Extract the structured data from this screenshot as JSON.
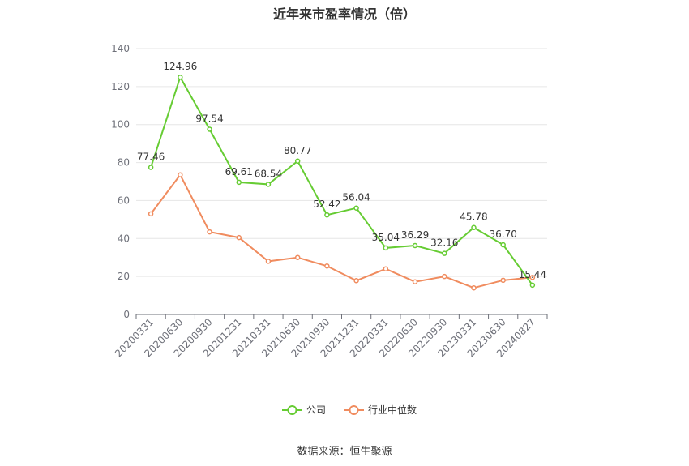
{
  "title": "近年来市盈率情况（倍）",
  "source": "数据来源：恒生聚源",
  "colors": {
    "company": "#66cc33",
    "median": "#f08c5f",
    "grid": "#e6e6e6",
    "axis": "#6e7079"
  },
  "chart_data": {
    "type": "line",
    "title": "近年来市盈率情况（倍）",
    "categories": [
      "20200331",
      "20200630",
      "20200930",
      "20201231",
      "20210331",
      "20210630",
      "20210930",
      "20211231",
      "20220331",
      "20220630",
      "20220930",
      "20230331",
      "20230630",
      "20240827"
    ],
    "ylim": [
      0,
      140
    ],
    "yticks": [
      0,
      20,
      40,
      60,
      80,
      100,
      120,
      140
    ],
    "grid": true,
    "legend": "bottom-center",
    "series": [
      {
        "name": "公司",
        "color": "#66cc33",
        "show_labels": true,
        "values": [
          77.46,
          124.96,
          97.54,
          69.61,
          68.54,
          80.77,
          52.42,
          56.04,
          35.04,
          36.29,
          32.16,
          45.78,
          36.7,
          15.44
        ]
      },
      {
        "name": "行业中位数",
        "color": "#f08c5f",
        "show_labels": false,
        "values": [
          53.0,
          73.5,
          43.5,
          40.5,
          28.0,
          30.0,
          25.5,
          17.8,
          24.0,
          17.2,
          20.0,
          14.0,
          18.0,
          19.5
        ]
      }
    ]
  }
}
